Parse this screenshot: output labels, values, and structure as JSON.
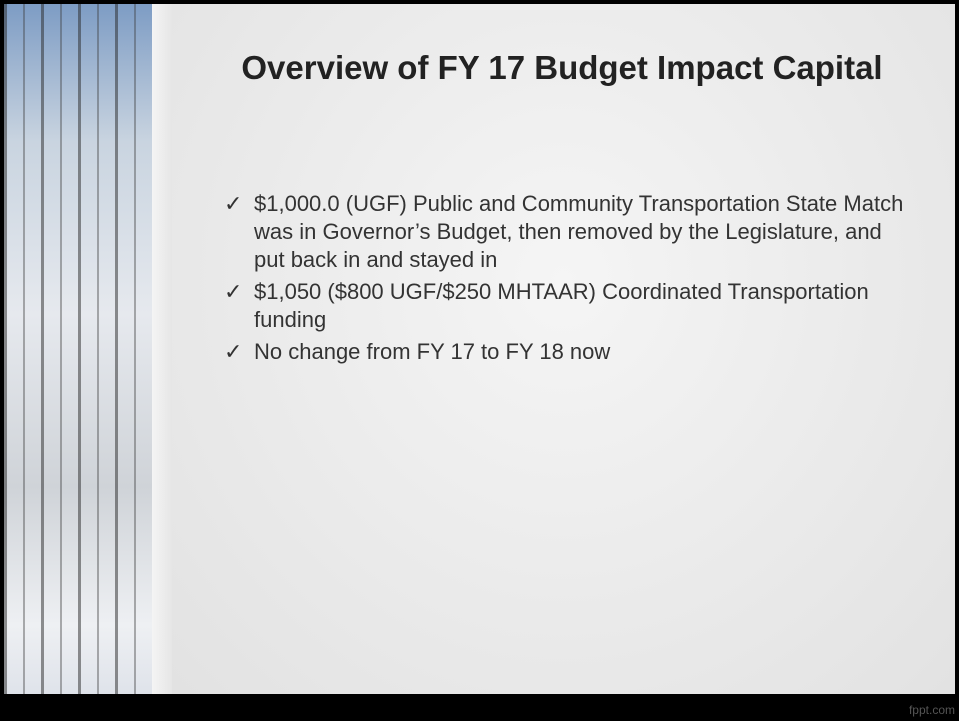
{
  "slide": {
    "title": "Overview of FY 17 Budget Impact Capital",
    "bullets": [
      "$1,000.0 (UGF) Public and Community Transportation State Match was in Governor’s Budget, then removed by the Legislature, and put back in and stayed in",
      "$1,050 ($800 UGF/$250 MHTAAR) Coordinated Transportation funding",
      "No change from FY 17 to FY 18 now"
    ],
    "bullet_symbol": "✓",
    "footer": "fppt.com"
  }
}
